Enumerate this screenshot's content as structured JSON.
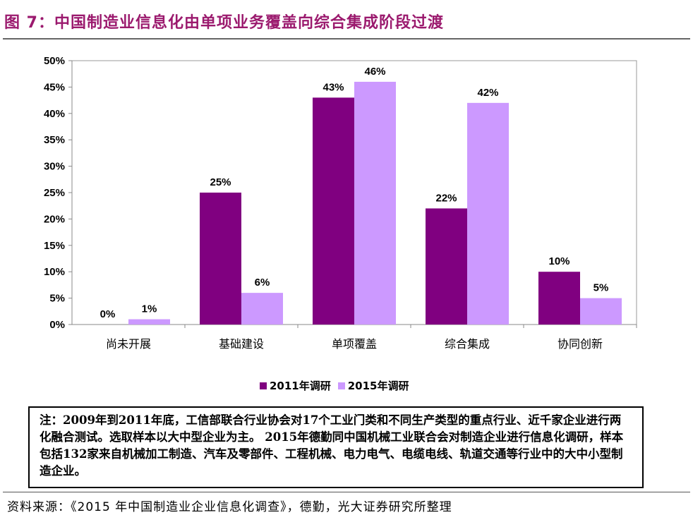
{
  "page": {
    "title": "图 7：中国制造业信息化由单项业务覆盖向综合集成阶段过渡",
    "note": "注：2009年到2011年底，工信部联合行业协会对17个工业门类和不同生产类型的重点行业、近千家企业进行两化融合测试。选取样本以大中型企业为主。 2015年德勤同中国机械工业联合会对制造企业进行信息化调研，样本包括132家来自机械加工制造、汽车及零部件、工程机械、电力电气、电缆电线、轨道交通等行业中的大中小型制造企业。",
    "source": "资料来源：《2015 年中国制造业企业信息化调查》，德勤，光大证券研究所整理"
  },
  "colors": {
    "title": "#9b1a6e",
    "series_2011": "#800080",
    "series_2015": "#cc99ff"
  },
  "chart_data": {
    "type": "bar",
    "categories": [
      "尚未开展",
      "基础建设",
      "单项覆盖",
      "综合集成",
      "协同创新"
    ],
    "series": [
      {
        "name": "2011年调研",
        "values": [
          0,
          25,
          43,
          22,
          10
        ],
        "labels": [
          "0%",
          "25%",
          "43%",
          "22%",
          "10%"
        ]
      },
      {
        "name": "2015年调研",
        "values": [
          1,
          6,
          46,
          42,
          5
        ],
        "labels": [
          "1%",
          "6%",
          "46%",
          "42%",
          "5%"
        ]
      }
    ],
    "ylim": [
      0,
      50
    ],
    "yticks": [
      "0%",
      "5%",
      "10%",
      "15%",
      "20%",
      "25%",
      "30%",
      "35%",
      "40%",
      "45%",
      "50%"
    ],
    "grid": false,
    "legend_position": "bottom"
  }
}
